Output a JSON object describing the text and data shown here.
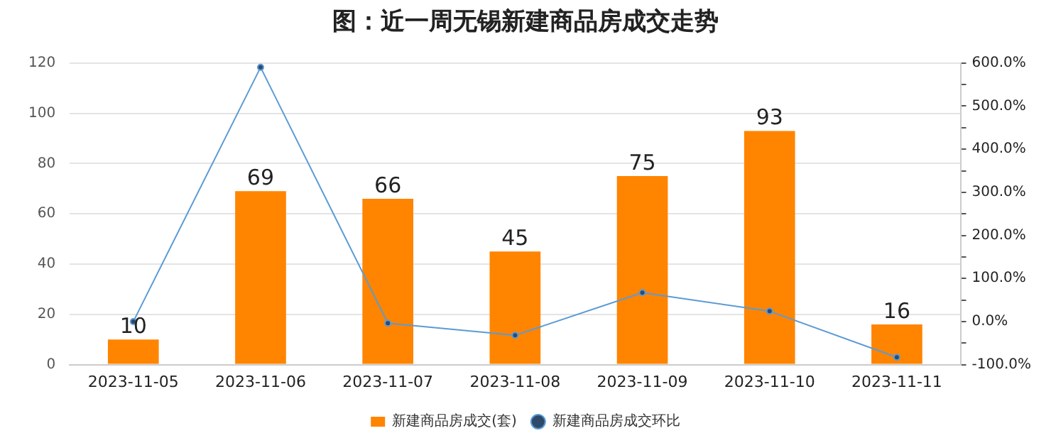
{
  "chart_data": {
    "type": "bar",
    "title": "图：近一周无锡新建商品房成交走势",
    "categories": [
      "2023-11-05",
      "2023-11-06",
      "2023-11-07",
      "2023-11-08",
      "2023-11-09",
      "2023-11-10",
      "2023-11-11"
    ],
    "series": [
      {
        "name": "新建商品房成交(套)",
        "color": "#ff8400",
        "values": [
          10,
          69,
          66,
          45,
          75,
          93,
          16
        ],
        "value_labels": [
          "10",
          "69",
          "66",
          "45",
          "75",
          "93",
          "16"
        ]
      },
      {
        "name": "新建商品房成交环比",
        "type": "line",
        "axis": "y2",
        "color": "#5b9bd5",
        "marker": "circle",
        "values": [
          0,
          590,
          -4,
          -32,
          67,
          24,
          -83
        ]
      }
    ],
    "ylim": [
      0,
      120
    ],
    "yticks": [
      0,
      20,
      40,
      60,
      80,
      100,
      120
    ],
    "y2lim": [
      -100,
      600
    ],
    "y2ticks": [
      {
        "value": -100,
        "label": "-100.0%"
      },
      {
        "value": -50,
        "label": null
      },
      {
        "value": 0,
        "label": "0.0%"
      },
      {
        "value": 50,
        "label": null
      },
      {
        "value": 100,
        "label": "100.0%"
      },
      {
        "value": 150,
        "label": null
      },
      {
        "value": 200,
        "label": "200.0%"
      },
      {
        "value": 250,
        "label": null
      },
      {
        "value": 300,
        "label": "300.0%"
      },
      {
        "value": 350,
        "label": null
      },
      {
        "value": 400,
        "label": "400.0%"
      },
      {
        "value": 450,
        "label": null
      },
      {
        "value": 500,
        "label": "500.0%"
      },
      {
        "value": 550,
        "label": null
      },
      {
        "value": 600,
        "label": "600.0%"
      }
    ],
    "grid": "y",
    "legend": "bottom"
  }
}
